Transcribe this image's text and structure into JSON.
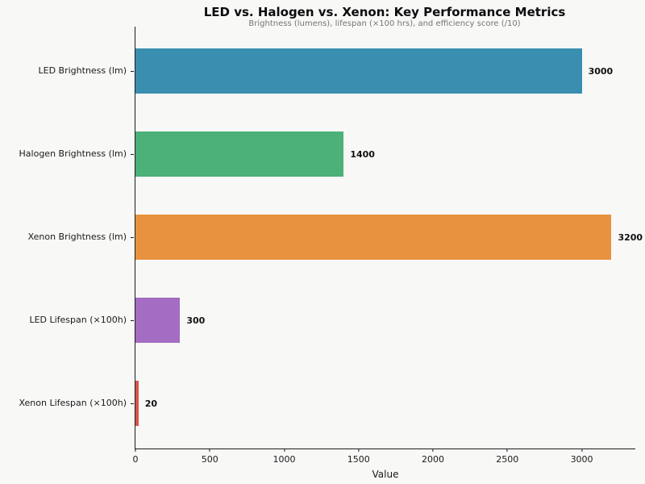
{
  "chart_data": {
    "type": "bar",
    "orientation": "horizontal",
    "title": "LED vs. Halogen vs. Xenon: Key Performance Metrics",
    "subtitle": "Brightness (lumens), lifespan (×100 hrs), and efficiency score (/10)",
    "xlabel": "Value",
    "categories": [
      "LED Brightness (lm)",
      "Halogen Brightness (lm)",
      "Xenon Brightness (lm)",
      "LED Lifespan (×100h)",
      "Xenon Lifespan (×100h)"
    ],
    "values": [
      3000,
      1400,
      3200,
      300,
      20
    ],
    "value_labels": [
      "3000",
      "1400",
      "3200",
      "300",
      "20"
    ],
    "bar_colors": [
      "#3a8fb0",
      "#4bb178",
      "#e8913f",
      "#a46cc2",
      "#d9544a"
    ],
    "xlim": [
      0,
      3360
    ],
    "xticks": [
      0,
      500,
      1000,
      1500,
      2000,
      2500,
      3000
    ],
    "grid": false,
    "legend": "none",
    "background": "#f8f8f7"
  }
}
